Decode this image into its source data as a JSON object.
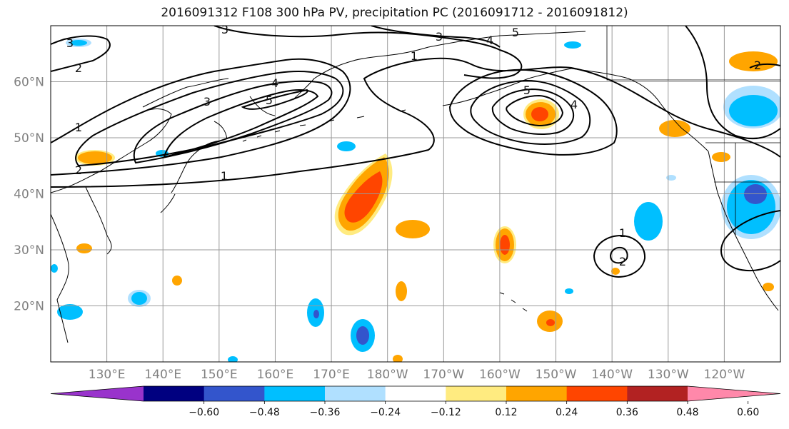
{
  "title": "2016091312 F108 300 hPa PV, precipitation PC (2016091712 - 2016091812)",
  "lat_labels": [
    "60°N",
    "50°N",
    "40°N",
    "30°N",
    "20°N"
  ],
  "lat_values": [
    60,
    50,
    40,
    30,
    20
  ],
  "lon_labels": [
    "130°E",
    "140°E",
    "150°E",
    "160°E",
    "170°E",
    "180°W",
    "170°W",
    "160°W",
    "150°W",
    "140°W",
    "130°W",
    "120°W"
  ],
  "lon_values": [
    130,
    140,
    150,
    160,
    170,
    180,
    190,
    200,
    210,
    220,
    230,
    240
  ],
  "map_extent": {
    "lon_min": 120,
    "lon_max": 250,
    "lat_min": 10,
    "lat_max": 70
  },
  "colorbar": {
    "colors": [
      "#9933cc",
      "#000080",
      "#3355cc",
      "#00bfff",
      "#b0e0ff",
      "#ffffff",
      "#ffeb80",
      "#ffa500",
      "#ff4500",
      "#b22222",
      "#ff88aa"
    ],
    "tick_labels": [
      "−0.60",
      "−0.48",
      "−0.36",
      "−0.24",
      "−0.12",
      "0.12",
      "0.24",
      "0.36",
      "0.48",
      "0.60"
    ],
    "extend": "both"
  },
  "contour_labels": [
    "3",
    "2",
    "1",
    "2",
    "3",
    "4",
    "5",
    "1",
    "1",
    "3",
    "4",
    "5",
    "5",
    "4",
    "1",
    "2",
    "2",
    "3"
  ],
  "precip_colors": {
    "neg_light": "#b0e0ff",
    "neg_mid": "#00bfff",
    "neg_strong": "#3355cc",
    "pos_light": "#ffeb80",
    "pos_mid": "#ffa500",
    "pos_strong": "#ff4500"
  }
}
